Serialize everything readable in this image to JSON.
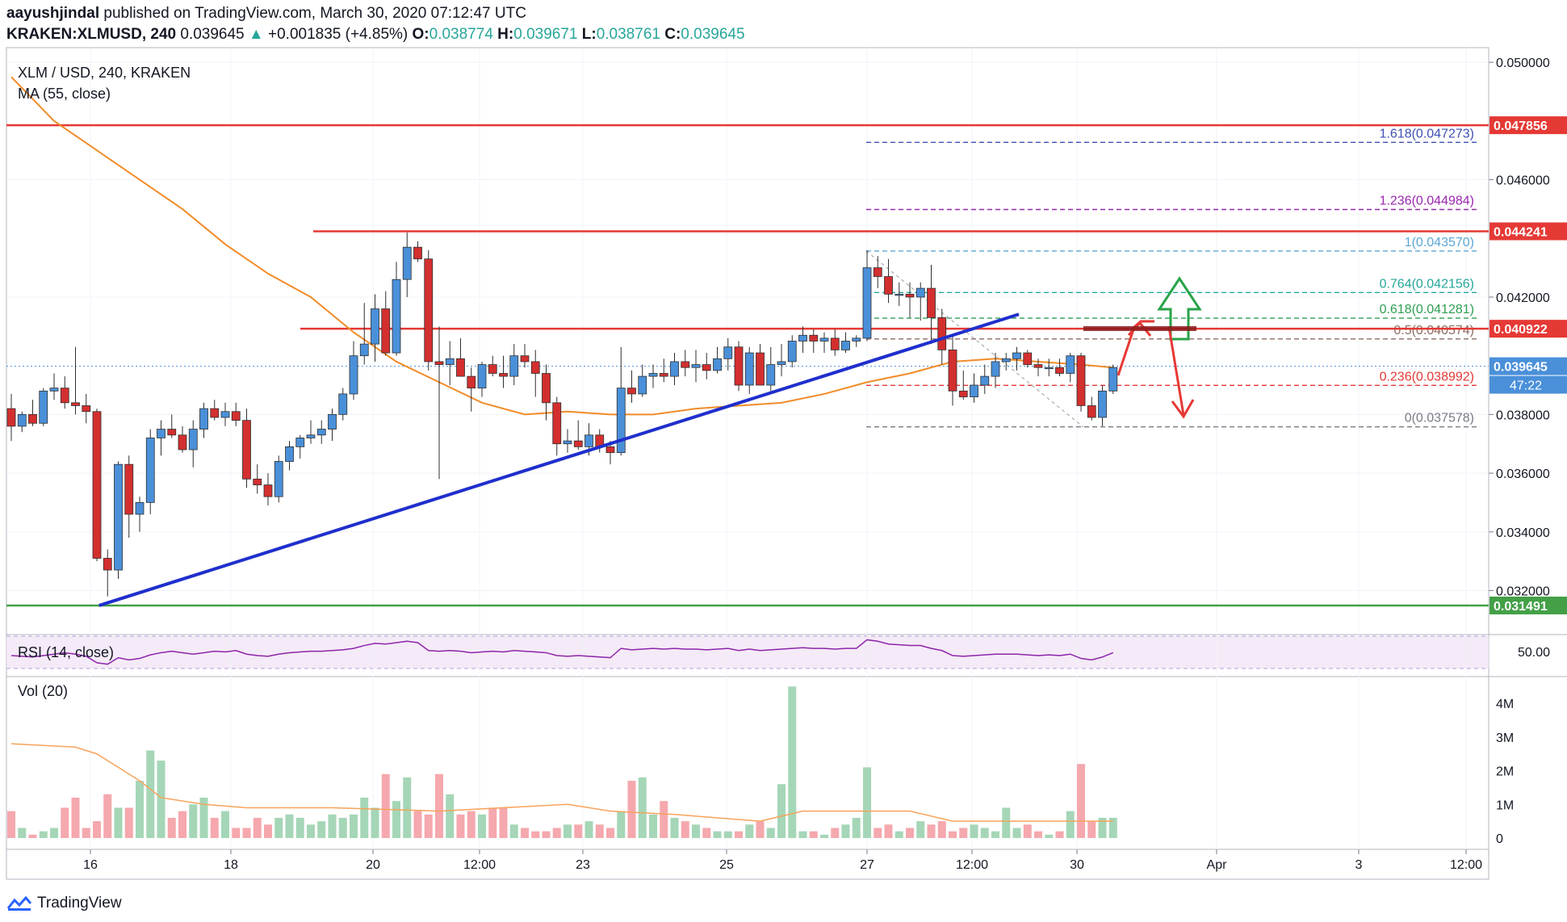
{
  "header": {
    "author": "aayushjindal",
    "published_text": "published on TradingView.com, March 30, 2020 07:12:47 UTC",
    "symbol": "KRAKEN:XLMUSD, 240",
    "last": "0.039645",
    "arrow": "▲",
    "change": "+0.001835 (+4.85%)",
    "o_label": "O:",
    "o": "0.038774",
    "h_label": "H:",
    "h": "0.039671",
    "l_label": "L:",
    "l": "0.038761",
    "c_label": "C:",
    "c": "0.039645"
  },
  "footer": {
    "brand": "TradingView"
  },
  "chart_data": {
    "type": "candlestick",
    "title": "XLM / USD, 240, KRAKEN",
    "indicator_ma": "MA (55, close)",
    "y_ticks": [
      "0.050000",
      "0.046000",
      "0.042000",
      "0.038000",
      "0.036000",
      "0.034000",
      "0.032000"
    ],
    "x_ticks": [
      "16",
      "18",
      "20",
      "12:00",
      "23",
      "25",
      "27",
      "12:00",
      "30",
      "Apr",
      "3",
      "12:00"
    ],
    "ylim": [
      0.0305,
      0.0505
    ],
    "candles": [
      [
        0.0382,
        0.0387,
        0.0371,
        0.0376
      ],
      [
        0.0376,
        0.0381,
        0.0374,
        0.038
      ],
      [
        0.038,
        0.0385,
        0.0376,
        0.0377
      ],
      [
        0.0377,
        0.0389,
        0.0376,
        0.0388
      ],
      [
        0.0388,
        0.0394,
        0.0385,
        0.0389
      ],
      [
        0.0389,
        0.0393,
        0.0382,
        0.0384
      ],
      [
        0.0384,
        0.0403,
        0.038,
        0.0383
      ],
      [
        0.0383,
        0.0387,
        0.0377,
        0.0381
      ],
      [
        0.0381,
        0.0382,
        0.033,
        0.0331
      ],
      [
        0.0331,
        0.0334,
        0.0318,
        0.0327
      ],
      [
        0.0327,
        0.0364,
        0.0324,
        0.0363
      ],
      [
        0.0363,
        0.0366,
        0.0338,
        0.0346
      ],
      [
        0.0346,
        0.0352,
        0.034,
        0.035
      ],
      [
        0.035,
        0.0375,
        0.0346,
        0.0372
      ],
      [
        0.0372,
        0.0378,
        0.0366,
        0.0375
      ],
      [
        0.0375,
        0.038,
        0.0372,
        0.0373
      ],
      [
        0.0373,
        0.0376,
        0.0367,
        0.0368
      ],
      [
        0.0368,
        0.0378,
        0.0362,
        0.0375
      ],
      [
        0.0375,
        0.0384,
        0.0372,
        0.0382
      ],
      [
        0.0382,
        0.0385,
        0.0378,
        0.0379
      ],
      [
        0.0379,
        0.0384,
        0.0376,
        0.0381
      ],
      [
        0.0381,
        0.0384,
        0.0376,
        0.0378
      ],
      [
        0.0378,
        0.0382,
        0.0355,
        0.0358
      ],
      [
        0.0358,
        0.0363,
        0.0353,
        0.0356
      ],
      [
        0.0356,
        0.036,
        0.0349,
        0.0352
      ],
      [
        0.0352,
        0.0366,
        0.035,
        0.0364
      ],
      [
        0.0364,
        0.0371,
        0.0361,
        0.0369
      ],
      [
        0.0369,
        0.0373,
        0.0365,
        0.0372
      ],
      [
        0.0372,
        0.0378,
        0.037,
        0.0373
      ],
      [
        0.0373,
        0.0378,
        0.037,
        0.0375
      ],
      [
        0.0375,
        0.0382,
        0.0371,
        0.038
      ],
      [
        0.038,
        0.0389,
        0.0378,
        0.0387
      ],
      [
        0.0387,
        0.0405,
        0.0385,
        0.04
      ],
      [
        0.04,
        0.0418,
        0.0397,
        0.0404
      ],
      [
        0.0404,
        0.0421,
        0.0398,
        0.0416
      ],
      [
        0.0416,
        0.0422,
        0.04,
        0.0401
      ],
      [
        0.0401,
        0.0432,
        0.04,
        0.0426
      ],
      [
        0.0426,
        0.0442,
        0.042,
        0.0437
      ],
      [
        0.0437,
        0.0439,
        0.0432,
        0.0433
      ],
      [
        0.0433,
        0.0436,
        0.0395,
        0.0398
      ],
      [
        0.0398,
        0.041,
        0.0358,
        0.0397
      ],
      [
        0.0397,
        0.0405,
        0.039,
        0.0399
      ],
      [
        0.0399,
        0.0406,
        0.0394,
        0.0393
      ],
      [
        0.0393,
        0.0396,
        0.0381,
        0.0389
      ],
      [
        0.0389,
        0.0398,
        0.0386,
        0.0397
      ],
      [
        0.0397,
        0.04,
        0.0393,
        0.0394
      ],
      [
        0.0394,
        0.04,
        0.0389,
        0.0393
      ],
      [
        0.0393,
        0.0404,
        0.039,
        0.04
      ],
      [
        0.04,
        0.0404,
        0.0396,
        0.0398
      ],
      [
        0.0398,
        0.0402,
        0.0386,
        0.0394
      ],
      [
        0.0394,
        0.0397,
        0.0378,
        0.0384
      ],
      [
        0.0384,
        0.0386,
        0.0366,
        0.037
      ],
      [
        0.037,
        0.0375,
        0.0367,
        0.0371
      ],
      [
        0.0371,
        0.0378,
        0.0368,
        0.0369
      ],
      [
        0.0369,
        0.0377,
        0.0366,
        0.0373
      ],
      [
        0.0373,
        0.0375,
        0.0367,
        0.0369
      ],
      [
        0.0369,
        0.0371,
        0.0363,
        0.0367
      ],
      [
        0.0367,
        0.0403,
        0.0366,
        0.0389
      ],
      [
        0.0389,
        0.0395,
        0.0384,
        0.0387
      ],
      [
        0.0387,
        0.0397,
        0.0386,
        0.0393
      ],
      [
        0.0393,
        0.0397,
        0.0389,
        0.0394
      ],
      [
        0.0394,
        0.0399,
        0.0391,
        0.0393
      ],
      [
        0.0393,
        0.0401,
        0.039,
        0.0398
      ],
      [
        0.0398,
        0.0402,
        0.0393,
        0.0396
      ],
      [
        0.0396,
        0.0402,
        0.0391,
        0.0397
      ],
      [
        0.0397,
        0.0401,
        0.0392,
        0.0395
      ],
      [
        0.0395,
        0.0403,
        0.0394,
        0.0399
      ],
      [
        0.0399,
        0.0406,
        0.0395,
        0.0403
      ],
      [
        0.0403,
        0.0405,
        0.0388,
        0.039
      ],
      [
        0.039,
        0.0403,
        0.0387,
        0.0401
      ],
      [
        0.0401,
        0.0404,
        0.039,
        0.039
      ],
      [
        0.039,
        0.0403,
        0.0388,
        0.0397
      ],
      [
        0.0397,
        0.0404,
        0.0393,
        0.0398
      ],
      [
        0.0398,
        0.0407,
        0.0396,
        0.0405
      ],
      [
        0.0405,
        0.041,
        0.0401,
        0.0407
      ],
      [
        0.0407,
        0.0409,
        0.0401,
        0.0405
      ],
      [
        0.0405,
        0.0408,
        0.0401,
        0.0406
      ],
      [
        0.0406,
        0.0409,
        0.04,
        0.0402
      ],
      [
        0.0402,
        0.0408,
        0.0401,
        0.0405
      ],
      [
        0.0405,
        0.0407,
        0.0403,
        0.0406
      ],
      [
        0.0406,
        0.0436,
        0.0405,
        0.043
      ],
      [
        0.043,
        0.0434,
        0.0423,
        0.0427
      ],
      [
        0.0427,
        0.0433,
        0.0418,
        0.0421
      ],
      [
        0.0421,
        0.0425,
        0.0417,
        0.0421
      ],
      [
        0.0421,
        0.0425,
        0.0413,
        0.042
      ],
      [
        0.042,
        0.0425,
        0.0412,
        0.0423
      ],
      [
        0.0423,
        0.0431,
        0.0404,
        0.0413
      ],
      [
        0.0413,
        0.0416,
        0.0397,
        0.0402
      ],
      [
        0.0402,
        0.0407,
        0.0383,
        0.0388
      ],
      [
        0.0388,
        0.0395,
        0.0385,
        0.0386
      ],
      [
        0.0386,
        0.0394,
        0.0384,
        0.039
      ],
      [
        0.039,
        0.0397,
        0.0387,
        0.0393
      ],
      [
        0.0393,
        0.0401,
        0.0389,
        0.0398
      ],
      [
        0.0398,
        0.0401,
        0.0395,
        0.0399
      ],
      [
        0.0399,
        0.0403,
        0.0395,
        0.0401
      ],
      [
        0.0401,
        0.0402,
        0.0396,
        0.0397
      ],
      [
        0.0397,
        0.0399,
        0.0393,
        0.0396
      ],
      [
        0.0396,
        0.0399,
        0.0393,
        0.0396
      ],
      [
        0.0396,
        0.0399,
        0.0393,
        0.0394
      ],
      [
        0.0394,
        0.0401,
        0.0391,
        0.04
      ],
      [
        0.04,
        0.0401,
        0.0381,
        0.0383
      ],
      [
        0.0383,
        0.0386,
        0.0378,
        0.0379
      ],
      [
        0.0379,
        0.039,
        0.0376,
        0.0388
      ],
      [
        0.0388,
        0.0397,
        0.0387,
        0.0396
      ]
    ],
    "ma55": [
      [
        0,
        0.0495
      ],
      [
        4,
        0.048
      ],
      [
        8,
        0.047
      ],
      [
        12,
        0.046
      ],
      [
        16,
        0.045
      ],
      [
        20,
        0.0438
      ],
      [
        24,
        0.0428
      ],
      [
        28,
        0.042
      ],
      [
        32,
        0.0408
      ],
      [
        36,
        0.0398
      ],
      [
        40,
        0.0391
      ],
      [
        44,
        0.0384
      ],
      [
        48,
        0.038
      ],
      [
        52,
        0.0381
      ],
      [
        56,
        0.038
      ],
      [
        60,
        0.038
      ],
      [
        64,
        0.0382
      ],
      [
        68,
        0.0383
      ],
      [
        72,
        0.0384
      ],
      [
        76,
        0.0387
      ],
      [
        80,
        0.0391
      ],
      [
        84,
        0.0394
      ],
      [
        88,
        0.0398
      ],
      [
        92,
        0.0399
      ],
      [
        96,
        0.0398
      ],
      [
        100,
        0.0397
      ],
      [
        103,
        0.0396
      ]
    ],
    "lines": {
      "resistance_top": "0.047856",
      "resistance_2": "0.044241",
      "resistance_3": "0.040922",
      "support": "0.031491",
      "last_price": "0.039645",
      "countdown": "47:22"
    },
    "fibonacci": [
      {
        "label": "1.618(0.047273)",
        "level": 0.047273,
        "color": "#3f51b5"
      },
      {
        "label": "1.236(0.044984)",
        "level": 0.044984,
        "color": "#9c27b0"
      },
      {
        "label": "1(0.043570)",
        "level": 0.04357,
        "color": "#5ca6d3"
      },
      {
        "label": "0.764(0.042156)",
        "level": 0.042156,
        "color": "#26a69a"
      },
      {
        "label": "0.618(0.041281)",
        "level": 0.041281,
        "color": "#2e9e52"
      },
      {
        "label": "0.5(0.040574)",
        "level": 0.040574,
        "color": "#8d6e63"
      },
      {
        "label": "0.236(0.038992)",
        "level": 0.038992,
        "color": "#e53935"
      },
      {
        "label": "0(0.037578)",
        "level": 0.037578,
        "color": "#787b86"
      }
    ],
    "rsi": {
      "label": "RSI (14, close)",
      "tick": "50.00",
      "values": [
        48,
        47,
        46,
        48,
        50,
        52,
        50,
        47,
        38,
        36,
        45,
        42,
        44,
        49,
        52,
        54,
        52,
        50,
        52,
        54,
        53,
        55,
        50,
        48,
        47,
        50,
        52,
        53,
        54,
        54,
        55,
        56,
        58,
        62,
        65,
        64,
        66,
        68,
        66,
        55,
        54,
        55,
        54,
        52,
        53,
        54,
        53,
        55,
        54,
        53,
        52,
        48,
        47,
        48,
        47,
        46,
        45,
        58,
        56,
        57,
        58,
        57,
        58,
        57,
        57,
        56,
        57,
        58,
        55,
        57,
        55,
        56,
        57,
        58,
        59,
        58,
        58,
        57,
        58,
        58,
        70,
        68,
        64,
        63,
        62,
        62,
        58,
        55,
        48,
        47,
        48,
        49,
        50,
        50,
        50,
        49,
        48,
        49,
        48,
        50,
        44,
        42,
        46,
        52
      ]
    },
    "volume": {
      "label": "Vol (20)",
      "ticks": [
        "4M",
        "3M",
        "2M",
        "1M",
        "0"
      ],
      "values": [
        0.8,
        0.3,
        0.1,
        0.2,
        0.3,
        0.9,
        1.2,
        0.3,
        0.5,
        1.3,
        0.9,
        0.9,
        1.7,
        2.6,
        2.3,
        0.6,
        0.8,
        1.0,
        1.2,
        0.6,
        0.8,
        0.3,
        0.3,
        0.6,
        0.4,
        0.6,
        0.7,
        0.6,
        0.4,
        0.5,
        0.7,
        0.6,
        0.7,
        1.2,
        0.9,
        1.9,
        1.1,
        1.8,
        0.8,
        0.7,
        1.9,
        1.3,
        0.7,
        0.8,
        0.7,
        0.9,
        0.9,
        0.4,
        0.3,
        0.2,
        0.2,
        0.3,
        0.4,
        0.4,
        0.5,
        0.4,
        0.3,
        0.8,
        1.7,
        1.8,
        0.7,
        1.1,
        0.6,
        0.5,
        0.4,
        0.3,
        0.2,
        0.2,
        0.2,
        0.4,
        0.5,
        0.3,
        1.6,
        4.5,
        0.2,
        0.2,
        0.1,
        0.3,
        0.4,
        0.6,
        2.1,
        0.3,
        0.4,
        0.2,
        0.3,
        0.5,
        0.4,
        0.5,
        0.2,
        0.3,
        0.4,
        0.3,
        0.2,
        0.9,
        0.3,
        0.4,
        0.2,
        0.1,
        0.2,
        0.8,
        2.2,
        0.5,
        0.6,
        0.6
      ],
      "avg": [
        [
          0,
          2.8
        ],
        [
          6,
          2.7
        ],
        [
          8,
          2.5
        ],
        [
          12,
          1.7
        ],
        [
          14,
          1.2
        ],
        [
          18,
          1.0
        ],
        [
          22,
          0.9
        ],
        [
          30,
          0.9
        ],
        [
          40,
          0.8
        ],
        [
          52,
          1.0
        ],
        [
          56,
          0.8
        ],
        [
          62,
          0.7
        ],
        [
          70,
          0.5
        ],
        [
          74,
          0.8
        ],
        [
          84,
          0.8
        ],
        [
          88,
          0.5
        ],
        [
          96,
          0.5
        ],
        [
          100,
          0.5
        ],
        [
          103,
          0.5
        ]
      ]
    },
    "arrows": {
      "up_color": "#27a348",
      "down_color": "#e53935"
    }
  }
}
